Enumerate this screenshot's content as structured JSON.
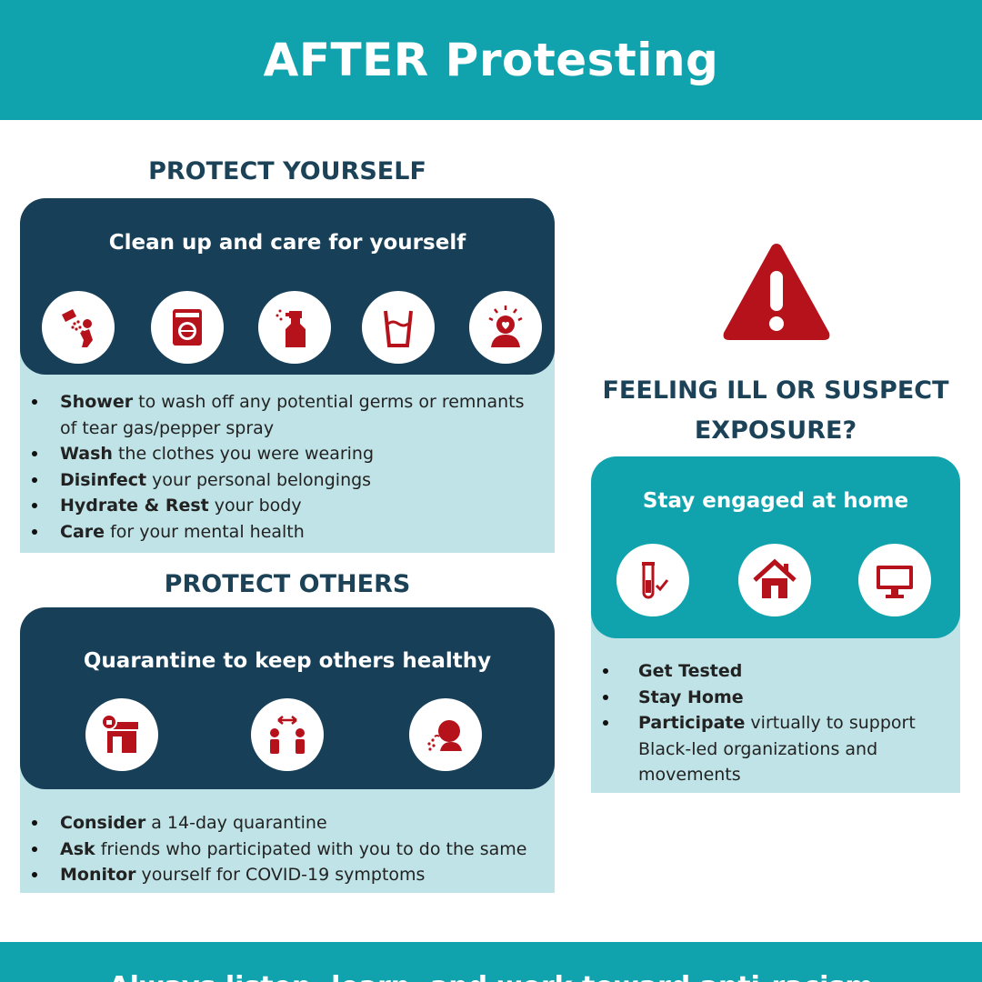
{
  "header": {
    "title": "AFTER Protesting"
  },
  "protect_yourself": {
    "heading": "PROTECT YOURSELF",
    "panel_title": "Clean up and care for yourself",
    "icons": [
      "shower-icon",
      "washing-machine-icon",
      "spray-bottle-icon",
      "water-glass-icon",
      "mental-health-icon"
    ],
    "items": [
      {
        "bold": "Shower",
        "text": " to wash off any potential germs or remnants of tear gas/pepper spray"
      },
      {
        "bold": "Wash",
        "text": " the clothes you were wearing"
      },
      {
        "bold": "Disinfect",
        "text": " your personal belongings"
      },
      {
        "bold": "Hydrate & Rest",
        "text": " your body"
      },
      {
        "bold": "Care",
        "text": " for your mental health"
      }
    ]
  },
  "protect_others": {
    "heading": "PROTECT OTHERS",
    "panel_title": "Quarantine to keep others healthy",
    "icons": [
      "closed-store-icon",
      "social-distance-icon",
      "sick-person-icon"
    ],
    "items": [
      {
        "bold": "Consider",
        "text": " a 14-day quarantine"
      },
      {
        "bold": "Ask",
        "text": " friends who participated with you to do the same"
      },
      {
        "bold": "Monitor",
        "text": " yourself for COVID-19 symptoms"
      }
    ]
  },
  "illness": {
    "heading_line1": "FEELING ILL OR SUSPECT",
    "heading_line2": "EXPOSURE?",
    "panel_title": "Stay engaged at home",
    "icons": [
      "test-tube-icon",
      "house-icon",
      "monitor-icon"
    ],
    "items": [
      {
        "bold": "Get Tested",
        "text": ""
      },
      {
        "bold": "Stay Home",
        "text": ""
      },
      {
        "bold": "Participate",
        "text": " virtually to support Black-led organizations and movements"
      }
    ]
  },
  "footer": {
    "text": "Always listen, learn, and work toward anti-racism"
  },
  "colors": {
    "teal": "#11a3ad",
    "navy": "#173f57",
    "light_teal": "#bfe3e6",
    "accent_red": "#b5121b",
    "heading_navy": "#1c4258"
  }
}
